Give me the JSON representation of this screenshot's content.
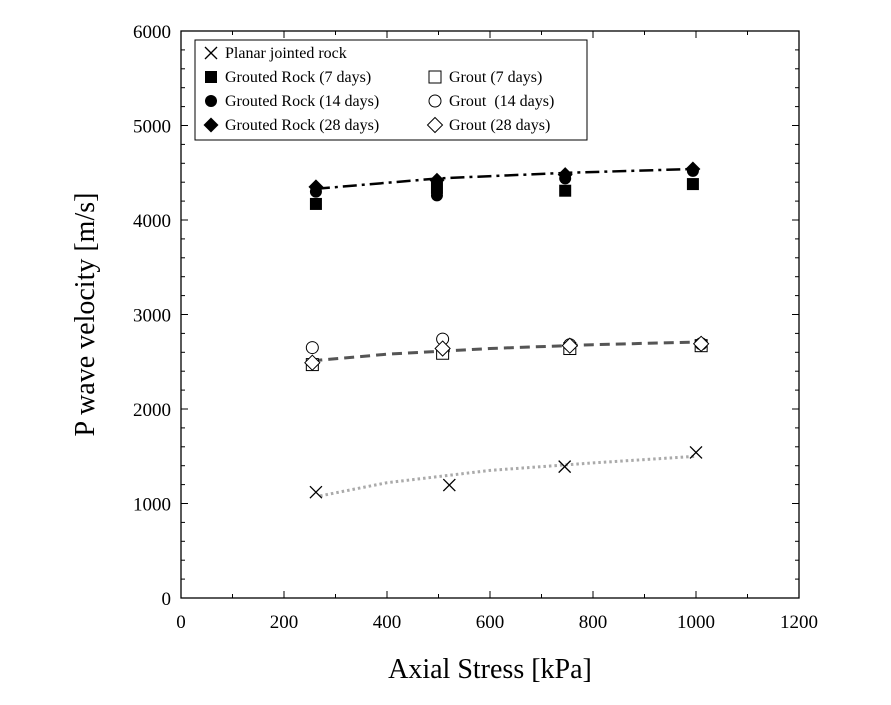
{
  "chart_data": {
    "type": "scatter",
    "title": "",
    "xlabel": "Axial Stress [kPa]",
    "ylabel": "P wave velocity [m/s]",
    "xlim": [
      0,
      1200
    ],
    "ylim": [
      0,
      6000
    ],
    "x_ticks": [
      "0",
      "200",
      "400",
      "600",
      "800",
      "1000",
      "1200"
    ],
    "y_ticks": [
      "0",
      "1000",
      "2000",
      "3000",
      "4000",
      "5000",
      "6000"
    ],
    "grid": false,
    "legend_position": "top-left",
    "series": [
      {
        "name": "Planar jointed rock",
        "marker": "x",
        "x": [
          262,
          521,
          745,
          1000
        ],
        "y": [
          1120,
          1195,
          1390,
          1540
        ]
      },
      {
        "name": "Grouted Rock (7 days)",
        "marker": "filled-square",
        "x": [
          262,
          497,
          746,
          994
        ],
        "y": [
          4170,
          4340,
          4310,
          4380
        ]
      },
      {
        "name": "Grouted Rock (14 days)",
        "marker": "filled-circle",
        "x": [
          262,
          497,
          746,
          994
        ],
        "y": [
          4300,
          4260,
          4440,
          4520
        ]
      },
      {
        "name": "Grouted Rock (28 days)",
        "marker": "filled-diamond",
        "x": [
          262,
          497,
          746,
          994
        ],
        "y": [
          4350,
          4420,
          4480,
          4540
        ]
      },
      {
        "name": "Grout (7 days)",
        "marker": "open-square",
        "x": [
          255,
          508,
          755,
          1010
        ],
        "y": [
          2470,
          2590,
          2640,
          2670
        ]
      },
      {
        "name": "Grout  (14 days)",
        "marker": "open-circle",
        "x": [
          255,
          508,
          755,
          1010
        ],
        "y": [
          2650,
          2740,
          2680,
          2690
        ]
      },
      {
        "name": "Grout (28 days)",
        "marker": "open-diamond",
        "x": [
          255,
          508,
          755,
          1010
        ],
        "y": [
          2490,
          2640,
          2670,
          2690
        ]
      }
    ],
    "trendlines": [
      {
        "style": "dotted",
        "color": "#aaaaaa",
        "points": [
          [
            270,
            1080
          ],
          [
            400,
            1220
          ],
          [
            600,
            1350
          ],
          [
            800,
            1430
          ],
          [
            1000,
            1500
          ]
        ]
      },
      {
        "style": "dashed",
        "color": "#555555",
        "points": [
          [
            255,
            2510
          ],
          [
            400,
            2580
          ],
          [
            600,
            2640
          ],
          [
            800,
            2680
          ],
          [
            1010,
            2710
          ]
        ]
      },
      {
        "style": "dash-dot",
        "color": "#000000",
        "points": [
          [
            262,
            4330
          ],
          [
            500,
            4440
          ],
          [
            750,
            4500
          ],
          [
            994,
            4540
          ]
        ]
      }
    ]
  }
}
